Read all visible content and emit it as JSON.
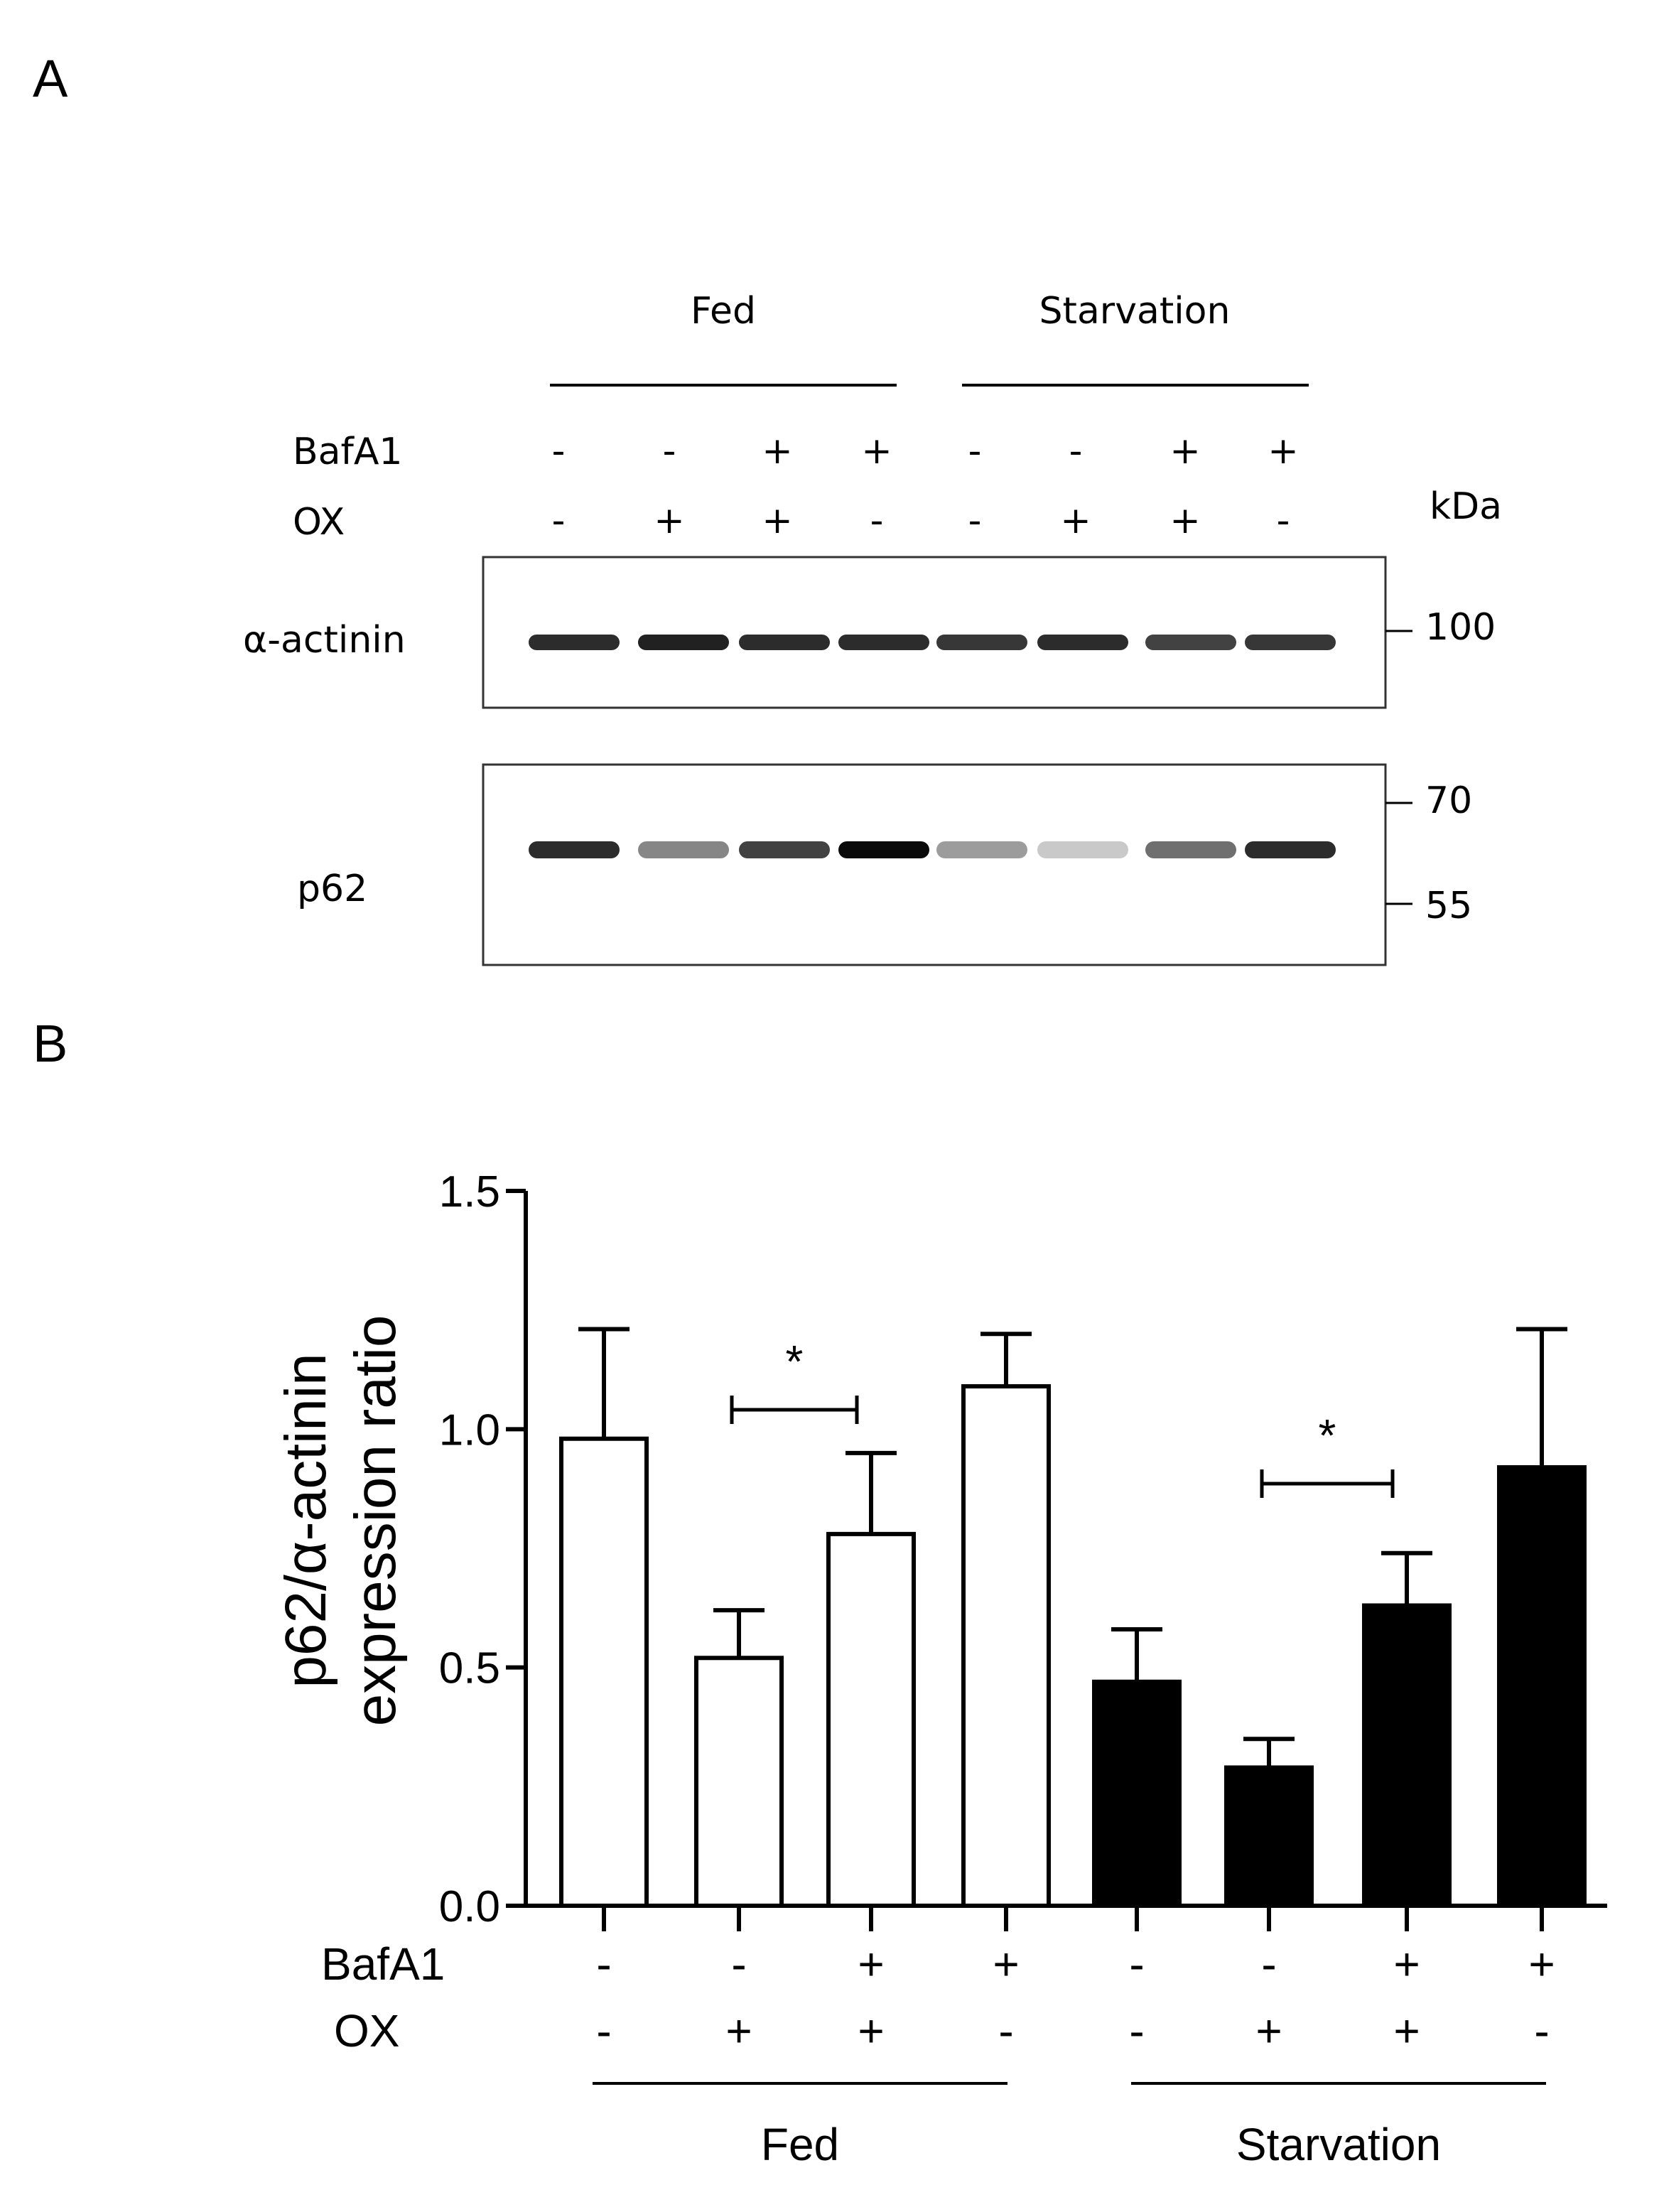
{
  "panel_a": {
    "letter": "A",
    "groups": [
      "Fed",
      "Starvation"
    ],
    "rows": [
      {
        "label": "BafA1",
        "signs": [
          "-",
          "-",
          "+",
          "+",
          "-",
          "-",
          "+",
          "+"
        ]
      },
      {
        "label": "OX",
        "signs": [
          "-",
          "+",
          "+",
          "-",
          "-",
          "+",
          "+",
          "-"
        ]
      }
    ],
    "kda_label": "kDa",
    "blots": [
      {
        "label": "α-actinin",
        "markers": [
          "100"
        ],
        "band_intensity": [
          0.85,
          0.9,
          0.85,
          0.85,
          0.8,
          0.85,
          0.75,
          0.8
        ]
      },
      {
        "label": "p62",
        "markers": [
          "70",
          "55"
        ],
        "band_intensity": [
          0.85,
          0.45,
          0.75,
          1.0,
          0.35,
          0.15,
          0.55,
          0.85
        ]
      }
    ]
  },
  "panel_b": {
    "letter": "B"
  },
  "colors": {
    "fed_fill": "#ffffff",
    "starvation_fill": "#000000",
    "stroke": "#000000"
  },
  "chart_data": {
    "type": "bar",
    "ylabel": [
      "p62/α-actinin",
      "expression ratio"
    ],
    "ylim": [
      0,
      1.5
    ],
    "yticks": [
      "0.0",
      "0.5",
      "1.0",
      "1.5"
    ],
    "x_conditions": {
      "BafA1": [
        "-",
        "-",
        "+",
        "+",
        "-",
        "-",
        "+",
        "+"
      ],
      "OX": [
        "-",
        "+",
        "+",
        "-",
        "-",
        "+",
        "+",
        "-"
      ]
    },
    "row_labels": [
      "BafA1",
      "OX"
    ],
    "groups": [
      "Fed",
      "Starvation"
    ],
    "series": [
      {
        "group": "Fed",
        "values": [
          0.98,
          0.52,
          0.78,
          1.09
        ],
        "errors": [
          0.23,
          0.1,
          0.17,
          0.11
        ]
      },
      {
        "group": "Starvation",
        "values": [
          0.47,
          0.29,
          0.63,
          0.92
        ],
        "errors": [
          0.11,
          0.06,
          0.11,
          0.29
        ]
      }
    ],
    "significance": [
      {
        "bars": [
          1,
          2
        ],
        "label": "*"
      },
      {
        "bars": [
          5,
          6
        ],
        "label": "*"
      }
    ]
  }
}
